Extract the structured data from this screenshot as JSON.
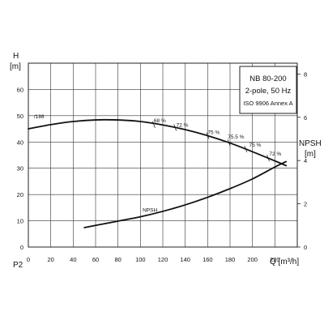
{
  "chart_data": {
    "type": "line",
    "title": "NB 80-200",
    "legend": {
      "lines": [
        "NB 80-200",
        "2-pole, 50 Hz",
        "ISO 9906 Annex A"
      ],
      "placement": "top-right"
    },
    "xlabel": "Q [m³/h]",
    "xlim": [
      0,
      240
    ],
    "xticks": [
      0,
      20,
      40,
      60,
      80,
      100,
      120,
      140,
      160,
      180,
      200,
      220
    ],
    "ylabel_left": [
      "H",
      "[m]"
    ],
    "ylim_left": [
      0,
      70
    ],
    "yticks_left": [
      0,
      10,
      20,
      30,
      40,
      50,
      60
    ],
    "ylabel_right": [
      "NPSH",
      "[m]"
    ],
    "ylim_right": [
      0,
      8.5
    ],
    "yticks_right": [
      0,
      2,
      4,
      6,
      8
    ],
    "bottom_label": "P2",
    "grid": true,
    "series": [
      {
        "name": "H",
        "axis": "left",
        "x": [
          0,
          20,
          40,
          60,
          80,
          100,
          120,
          140,
          160,
          180,
          200,
          220,
          230
        ],
        "y": [
          45,
          46.6,
          47.8,
          48.4,
          48.4,
          47.8,
          46.5,
          44.7,
          42.4,
          39.6,
          36.3,
          32.8,
          31
        ]
      },
      {
        "name": "NPSH",
        "axis": "right",
        "x": [
          50,
          60,
          80,
          100,
          120,
          140,
          160,
          180,
          200,
          220,
          230
        ],
        "y": [
          0.9,
          1.0,
          1.2,
          1.4,
          1.65,
          1.95,
          2.3,
          2.7,
          3.15,
          3.7,
          3.95
        ]
      }
    ],
    "annotations": [
      {
        "text": "/186",
        "x": 5,
        "y": 49
      },
      {
        "text": "68 %",
        "x": 112,
        "y": 47.5
      },
      {
        "text": "72 %",
        "x": 132,
        "y": 45.8
      },
      {
        "text": "75 %",
        "x": 160,
        "y": 43
      },
      {
        "text": "75.5 %",
        "x": 178,
        "y": 41.3
      },
      {
        "text": "75 %",
        "x": 197,
        "y": 38.3
      },
      {
        "text": "72 %",
        "x": 215,
        "y": 34.8
      },
      {
        "text": "NPSH",
        "x": 102,
        "y": 13.4
      }
    ],
    "efficiency_marks": [
      {
        "x": 112,
        "y": 46.6
      },
      {
        "x": 131,
        "y": 45.5
      },
      {
        "x": 160,
        "y": 42.4
      },
      {
        "x": 179,
        "y": 39.7
      },
      {
        "x": 194,
        "y": 37.3
      },
      {
        "x": 214,
        "y": 33.9
      }
    ]
  }
}
